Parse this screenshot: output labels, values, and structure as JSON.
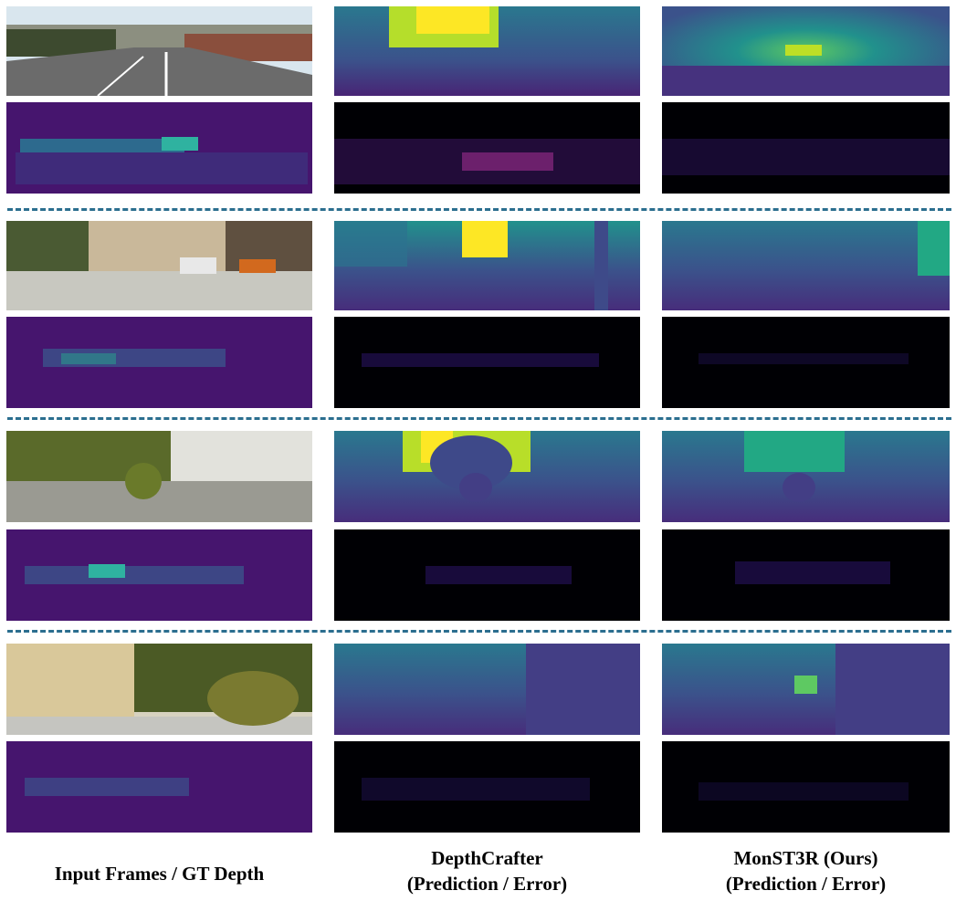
{
  "columns": [
    {
      "caption_line1": "Input Frames / GT Depth",
      "caption_line2": ""
    },
    {
      "caption_line1": "DepthCrafter",
      "caption_line2": "(Prediction / Error)"
    },
    {
      "caption_line1": "MonST3R (Ours)",
      "caption_line2": "(Prediction / Error)"
    }
  ],
  "rows": 4,
  "colors": {
    "separator": "#2b6e8f",
    "colormap_low": "#440154",
    "colormap_mid": "#21918c",
    "colormap_high": "#fde725",
    "error_bg": "#000004"
  }
}
